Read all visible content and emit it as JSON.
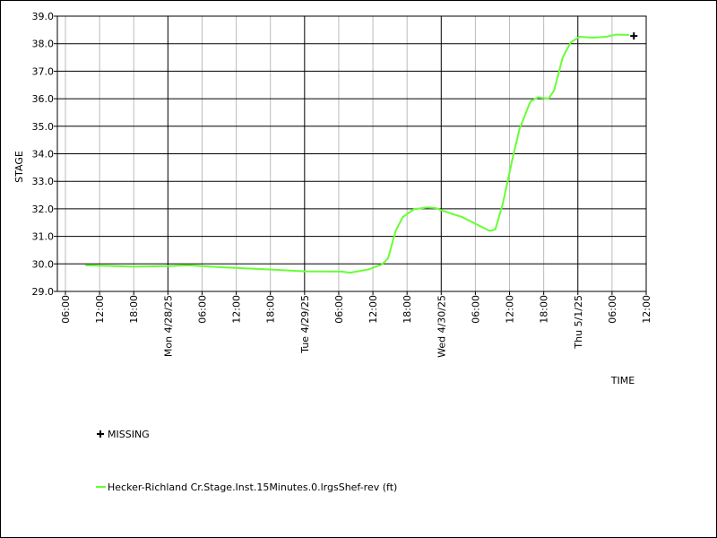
{
  "chart_data": {
    "type": "line",
    "x_label": "TIME",
    "y_label": "STAGE",
    "xlim": [
      "2025-04-27T04:35",
      "2025-05-01T12:00"
    ],
    "ylim": [
      29,
      39
    ],
    "yticks": [
      {
        "value": 29,
        "label": "29.0"
      },
      {
        "value": 30,
        "label": "30.0"
      },
      {
        "value": 31,
        "label": "31.0"
      },
      {
        "value": 32,
        "label": "32.0"
      },
      {
        "value": 33,
        "label": "33.0"
      },
      {
        "value": 34,
        "label": "34.0"
      },
      {
        "value": 35,
        "label": "35.0"
      },
      {
        "value": 36,
        "label": "36.0"
      },
      {
        "value": 37,
        "label": "37.0"
      },
      {
        "value": 38,
        "label": "38.0"
      },
      {
        "value": 39,
        "label": "39.0"
      }
    ],
    "xticks": [
      {
        "value": "2025-04-27T06:00",
        "label": "06:00"
      },
      {
        "value": "2025-04-27T12:00",
        "label": "12:00"
      },
      {
        "value": "2025-04-27T18:00",
        "label": "18:00"
      },
      {
        "value": "2025-04-28T00:00",
        "label": "Mon 4/28/25"
      },
      {
        "value": "2025-04-28T06:00",
        "label": "06:00"
      },
      {
        "value": "2025-04-28T12:00",
        "label": "12:00"
      },
      {
        "value": "2025-04-28T18:00",
        "label": "18:00"
      },
      {
        "value": "2025-04-29T00:00",
        "label": "Tue 4/29/25"
      },
      {
        "value": "2025-04-29T06:00",
        "label": "06:00"
      },
      {
        "value": "2025-04-29T12:00",
        "label": "12:00"
      },
      {
        "value": "2025-04-29T18:00",
        "label": "18:00"
      },
      {
        "value": "2025-04-30T00:00",
        "label": "Wed 4/30/25"
      },
      {
        "value": "2025-04-30T06:00",
        "label": "06:00"
      },
      {
        "value": "2025-04-30T12:00",
        "label": "12:00"
      },
      {
        "value": "2025-04-30T18:00",
        "label": "18:00"
      },
      {
        "value": "2025-05-01T00:00",
        "label": "Thu 5/1/25"
      },
      {
        "value": "2025-05-01T06:00",
        "label": "06:00"
      },
      {
        "value": "2025-05-01T12:00",
        "label": "12:00"
      }
    ],
    "grid": true,
    "series": [
      {
        "name": "Hecker-Richland Cr.Stage.Inst.15Minutes.0.lrgsShef-rev (ft)",
        "color": "#66ff33",
        "marker": "line",
        "x": [
          "2025-04-27T09:30",
          "2025-04-27T18:00",
          "2025-04-28T00:00",
          "2025-04-28T03:30",
          "2025-04-28T10:00",
          "2025-04-28T17:50",
          "2025-04-29T00:00",
          "2025-04-29T06:30",
          "2025-04-29T08:00",
          "2025-04-29T11:15",
          "2025-04-29T13:35",
          "2025-04-29T14:40",
          "2025-04-29T16:00",
          "2025-04-29T17:15",
          "2025-04-29T19:10",
          "2025-04-29T21:30",
          "2025-04-29T23:00",
          "2025-04-30T00:00",
          "2025-04-30T03:40",
          "2025-04-30T08:30",
          "2025-04-30T09:30",
          "2025-04-30T10:50",
          "2025-04-30T12:30",
          "2025-04-30T13:45",
          "2025-04-30T15:40",
          "2025-04-30T17:00",
          "2025-04-30T18:50",
          "2025-04-30T19:50",
          "2025-04-30T21:20",
          "2025-04-30T22:45",
          "2025-05-01T00:20",
          "2025-05-01T02:40",
          "2025-05-01T05:00",
          "2025-05-01T06:40",
          "2025-05-01T09:00"
        ],
        "values": [
          29.95,
          29.9,
          29.92,
          29.95,
          29.87,
          29.8,
          29.73,
          29.72,
          29.68,
          29.8,
          29.98,
          30.2,
          31.2,
          31.7,
          31.98,
          32.05,
          32.03,
          31.95,
          31.7,
          31.2,
          31.25,
          32.2,
          33.8,
          34.9,
          35.9,
          36.05,
          36.0,
          36.3,
          37.5,
          38.05,
          38.25,
          38.22,
          38.25,
          38.33,
          38.32
        ]
      },
      {
        "name": "MISSING",
        "color": "#000000",
        "marker": "plus",
        "x": [
          "2025-05-01T09:50"
        ],
        "values": [
          38.28
        ]
      }
    ]
  }
}
